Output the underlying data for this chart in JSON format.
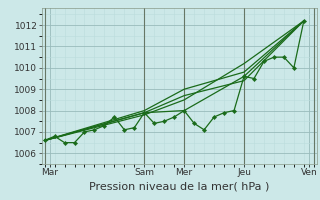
{
  "xlabel": "Pression niveau de la mer( hPa )",
  "bg_color": "#cce8e8",
  "grid_major_color": "#99bbbb",
  "grid_minor_color": "#bbdddd",
  "line_color": "#1a6b1a",
  "vline_color": "#667766",
  "ylim": [
    1005.5,
    1012.8
  ],
  "xlim": [
    -0.3,
    27.3
  ],
  "day_labels": [
    "Mar",
    "Sam",
    "Mer",
    "Jeu",
    "Ven"
  ],
  "day_positions": [
    0.5,
    10,
    14,
    20,
    26.5
  ],
  "vline_positions": [
    0,
    10,
    14,
    20,
    27
  ],
  "series1_x": [
    0,
    1,
    2,
    3,
    4,
    5,
    6,
    7,
    8,
    9,
    10,
    11,
    12,
    13,
    14,
    15,
    16,
    17,
    18,
    19,
    20,
    21,
    22,
    23,
    24,
    25,
    26
  ],
  "series1_y": [
    1006.6,
    1006.8,
    1006.5,
    1006.5,
    1007.0,
    1007.1,
    1007.3,
    1007.7,
    1007.1,
    1007.2,
    1007.9,
    1007.4,
    1007.5,
    1007.7,
    1008.0,
    1007.4,
    1007.1,
    1007.7,
    1007.9,
    1008.0,
    1009.6,
    1009.5,
    1010.3,
    1010.5,
    1010.5,
    1010.0,
    1012.2
  ],
  "series2_x": [
    0,
    10,
    14,
    20,
    26
  ],
  "series2_y": [
    1006.6,
    1007.9,
    1008.0,
    1009.6,
    1012.2
  ],
  "series3_x": [
    0,
    10,
    14,
    20,
    26
  ],
  "series3_y": [
    1006.6,
    1007.8,
    1008.5,
    1010.2,
    1012.2
  ],
  "series4_x": [
    0,
    10,
    14,
    20,
    26
  ],
  "series4_y": [
    1006.6,
    1007.9,
    1008.7,
    1009.4,
    1012.2
  ],
  "series5_x": [
    0,
    10,
    14,
    20,
    26
  ],
  "series5_y": [
    1006.6,
    1008.0,
    1009.0,
    1009.8,
    1012.2
  ],
  "yticks": [
    1006,
    1007,
    1008,
    1009,
    1010,
    1011,
    1012
  ],
  "xlabel_fontsize": 8,
  "tick_fontsize": 6.5
}
